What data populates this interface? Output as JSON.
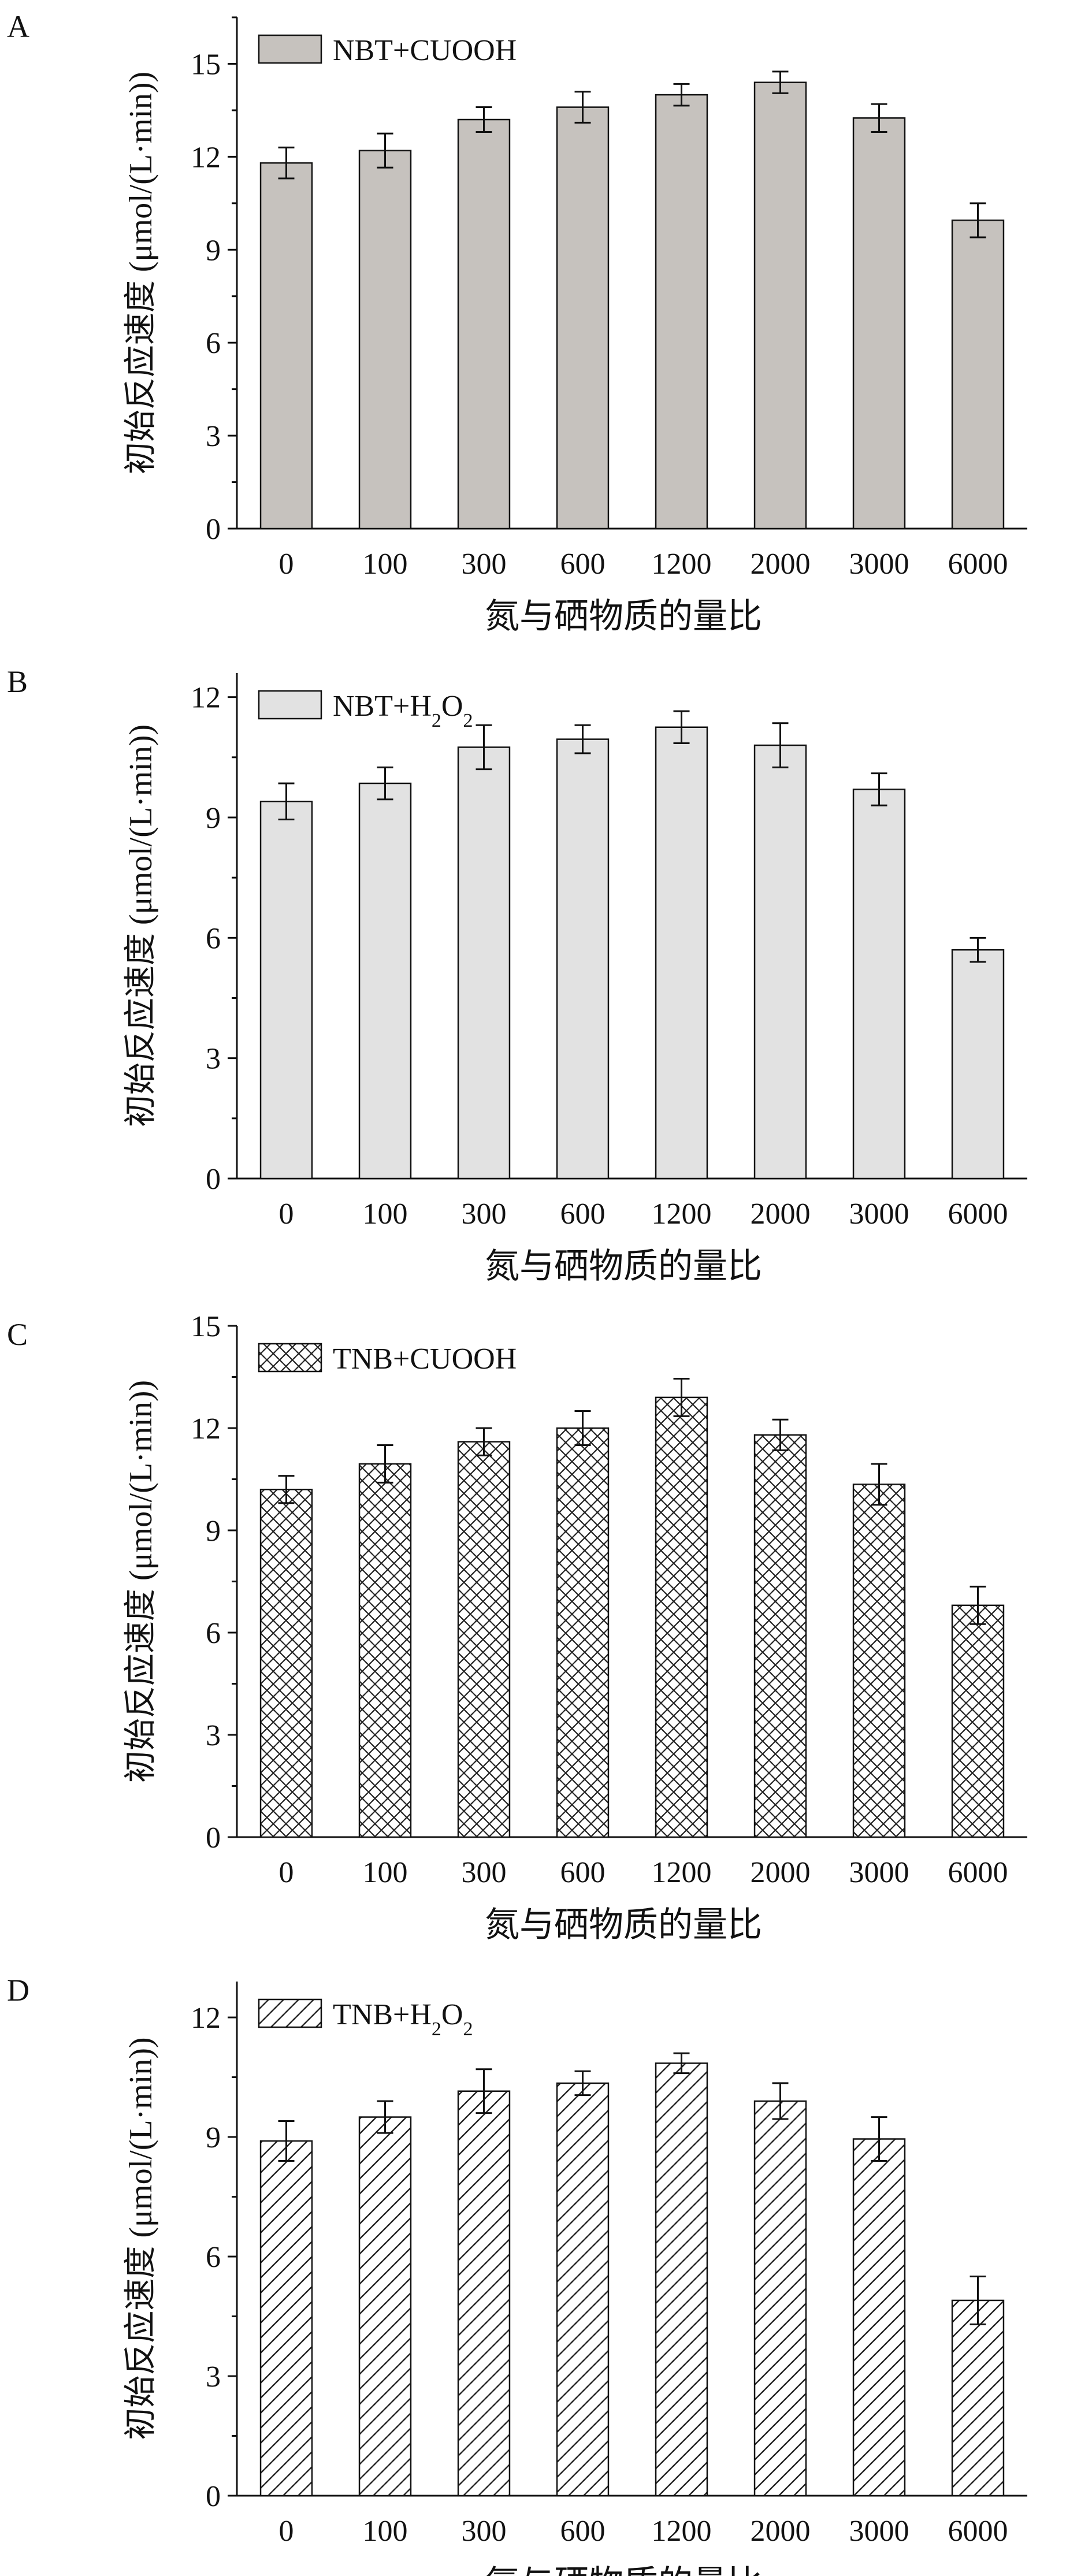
{
  "chart_data": [
    {
      "type": "bar",
      "panel_label": "A",
      "categories": [
        "0",
        "100",
        "300",
        "600",
        "1200",
        "2000",
        "3000",
        "6000"
      ],
      "series": [
        {
          "name": "NBT+CUOOH",
          "name_parts": [
            {
              "t": "NBT+CUOOH",
              "sub": false
            }
          ],
          "values": [
            11.8,
            12.2,
            13.2,
            13.6,
            14.0,
            14.4,
            13.25,
            9.95
          ],
          "errors": [
            0.5,
            0.55,
            0.4,
            0.5,
            0.35,
            0.35,
            0.45,
            0.55
          ],
          "fill": "#c6c2be",
          "pattern": "solid"
        }
      ],
      "xlabel": "氮与硒物质的量比",
      "ylabel": "初始反应速度 (μmol/(L·min))",
      "ylim": [
        0,
        16.5
      ],
      "yticks": [
        0,
        3,
        6,
        9,
        12,
        15
      ],
      "grid": false,
      "legend": "top-left"
    },
    {
      "type": "bar",
      "panel_label": "B",
      "categories": [
        "0",
        "100",
        "300",
        "600",
        "1200",
        "2000",
        "3000",
        "6000"
      ],
      "series": [
        {
          "name": "NBT+H2O2",
          "name_parts": [
            {
              "t": "NBT+H",
              "sub": false
            },
            {
              "t": "2",
              "sub": true
            },
            {
              "t": "O",
              "sub": false
            },
            {
              "t": "2",
              "sub": true
            }
          ],
          "values": [
            9.4,
            9.85,
            10.75,
            10.95,
            11.25,
            10.8,
            9.7,
            5.7
          ],
          "errors": [
            0.45,
            0.4,
            0.55,
            0.35,
            0.4,
            0.55,
            0.4,
            0.3
          ],
          "fill": "#e2e2e2",
          "pattern": "solid"
        }
      ],
      "xlabel": "氮与硒物质的量比",
      "ylabel": "初始反应速度 (μmol/(L·min))",
      "ylim": [
        0,
        12.6
      ],
      "yticks": [
        0,
        3,
        6,
        9,
        12
      ],
      "grid": false,
      "legend": "top-left"
    },
    {
      "type": "bar",
      "panel_label": "C",
      "categories": [
        "0",
        "100",
        "300",
        "600",
        "1200",
        "2000",
        "3000",
        "6000"
      ],
      "series": [
        {
          "name": "TNB+CUOOH",
          "name_parts": [
            {
              "t": "TNB+CUOOH",
              "sub": false
            }
          ],
          "values": [
            10.2,
            10.95,
            11.6,
            12.0,
            12.9,
            11.8,
            10.35,
            6.8
          ],
          "errors": [
            0.4,
            0.55,
            0.4,
            0.5,
            0.55,
            0.45,
            0.6,
            0.55
          ],
          "fill": "#ffffff",
          "pattern": "crosshatch"
        }
      ],
      "xlabel": "氮与硒物质的量比",
      "ylabel": "初始反应速度 (μmol/(L·min))",
      "ylim": [
        0,
        15
      ],
      "yticks": [
        0,
        3,
        6,
        9,
        12,
        15
      ],
      "grid": false,
      "legend": "top-left"
    },
    {
      "type": "bar",
      "panel_label": "D",
      "categories": [
        "0",
        "100",
        "300",
        "600",
        "1200",
        "2000",
        "3000",
        "6000"
      ],
      "series": [
        {
          "name": "TNB+H2O2",
          "name_parts": [
            {
              "t": "TNB+H",
              "sub": false
            },
            {
              "t": "2",
              "sub": true
            },
            {
              "t": "O",
              "sub": false
            },
            {
              "t": "2",
              "sub": true
            }
          ],
          "values": [
            8.9,
            9.5,
            10.15,
            10.35,
            10.85,
            9.9,
            8.95,
            4.9
          ],
          "errors": [
            0.5,
            0.4,
            0.55,
            0.3,
            0.25,
            0.45,
            0.55,
            0.6
          ],
          "fill": "#ffffff",
          "pattern": "diagonal"
        }
      ],
      "xlabel": "氮与硒物质的量比",
      "ylabel": "初始反应速度 (μmol/(L·min))",
      "ylim": [
        0,
        12.9
      ],
      "yticks": [
        0,
        3,
        6,
        9,
        12
      ],
      "grid": false,
      "legend": "top-left"
    }
  ]
}
